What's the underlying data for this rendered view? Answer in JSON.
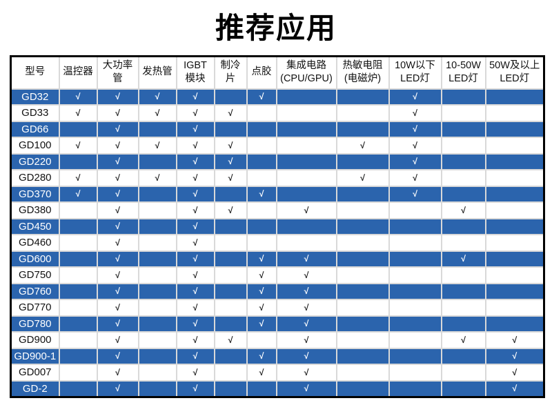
{
  "title": "推荐应用",
  "colors": {
    "row_blue": "#2b64ad",
    "row_white": "#ffffff",
    "grid_line": "#d9d9d9",
    "outer_border": "#000000",
    "check_on_blue": "#ffffff",
    "check_on_white": "#1a1a1a"
  },
  "table": {
    "checkmark": "√",
    "columns": [
      {
        "lines": [
          "型号"
        ]
      },
      {
        "lines": [
          "温控器"
        ]
      },
      {
        "lines": [
          "大功率管"
        ]
      },
      {
        "lines": [
          "发热管"
        ]
      },
      {
        "lines": [
          "IGBT",
          "模块"
        ]
      },
      {
        "lines": [
          "制冷片"
        ]
      },
      {
        "lines": [
          "点胶"
        ]
      },
      {
        "lines": [
          "集成电路",
          "(CPU/GPU)"
        ]
      },
      {
        "lines": [
          "热敏电阻",
          "(电磁炉)"
        ]
      },
      {
        "lines": [
          "10W以下",
          "LED灯"
        ]
      },
      {
        "lines": [
          "10-50W",
          "LED灯"
        ]
      },
      {
        "lines": [
          "50W及以上",
          "LED灯"
        ]
      }
    ],
    "rows": [
      {
        "model": "GD32",
        "checks": [
          1,
          1,
          1,
          1,
          0,
          1,
          0,
          0,
          1,
          0,
          0
        ]
      },
      {
        "model": "GD33",
        "checks": [
          1,
          1,
          1,
          1,
          1,
          0,
          0,
          0,
          1,
          0,
          0
        ]
      },
      {
        "model": "GD66",
        "checks": [
          0,
          1,
          0,
          1,
          0,
          0,
          0,
          0,
          1,
          0,
          0
        ]
      },
      {
        "model": "GD100",
        "checks": [
          1,
          1,
          1,
          1,
          1,
          0,
          0,
          1,
          1,
          0,
          0
        ]
      },
      {
        "model": "GD220",
        "checks": [
          0,
          1,
          0,
          1,
          1,
          0,
          0,
          0,
          1,
          0,
          0
        ]
      },
      {
        "model": "GD280",
        "checks": [
          1,
          1,
          1,
          1,
          1,
          0,
          0,
          1,
          1,
          0,
          0
        ]
      },
      {
        "model": "GD370",
        "checks": [
          1,
          1,
          0,
          1,
          0,
          1,
          0,
          0,
          1,
          0,
          0
        ]
      },
      {
        "model": "GD380",
        "checks": [
          0,
          1,
          0,
          1,
          1,
          0,
          1,
          0,
          0,
          1,
          0
        ]
      },
      {
        "model": "GD450",
        "checks": [
          0,
          1,
          0,
          1,
          0,
          0,
          0,
          0,
          0,
          0,
          0
        ]
      },
      {
        "model": "GD460",
        "checks": [
          0,
          1,
          0,
          1,
          0,
          0,
          0,
          0,
          0,
          0,
          0
        ]
      },
      {
        "model": "GD600",
        "checks": [
          0,
          1,
          0,
          1,
          0,
          1,
          1,
          0,
          0,
          1,
          0
        ]
      },
      {
        "model": "GD750",
        "checks": [
          0,
          1,
          0,
          1,
          0,
          1,
          1,
          0,
          0,
          0,
          0
        ]
      },
      {
        "model": "GD760",
        "checks": [
          0,
          1,
          0,
          1,
          0,
          1,
          1,
          0,
          0,
          0,
          0
        ]
      },
      {
        "model": "GD770",
        "checks": [
          0,
          1,
          0,
          1,
          0,
          1,
          1,
          0,
          0,
          0,
          0
        ]
      },
      {
        "model": "GD780",
        "checks": [
          0,
          1,
          0,
          1,
          0,
          1,
          1,
          0,
          0,
          0,
          0
        ]
      },
      {
        "model": "GD900",
        "checks": [
          0,
          1,
          0,
          1,
          1,
          0,
          1,
          0,
          0,
          1,
          1
        ]
      },
      {
        "model": "GD900-1",
        "checks": [
          0,
          1,
          0,
          1,
          0,
          1,
          1,
          0,
          0,
          0,
          1
        ]
      },
      {
        "model": "GD007",
        "checks": [
          0,
          1,
          0,
          1,
          0,
          1,
          1,
          0,
          0,
          0,
          1
        ]
      },
      {
        "model": "GD-2",
        "checks": [
          0,
          1,
          0,
          1,
          0,
          0,
          1,
          0,
          0,
          0,
          1
        ]
      }
    ]
  }
}
